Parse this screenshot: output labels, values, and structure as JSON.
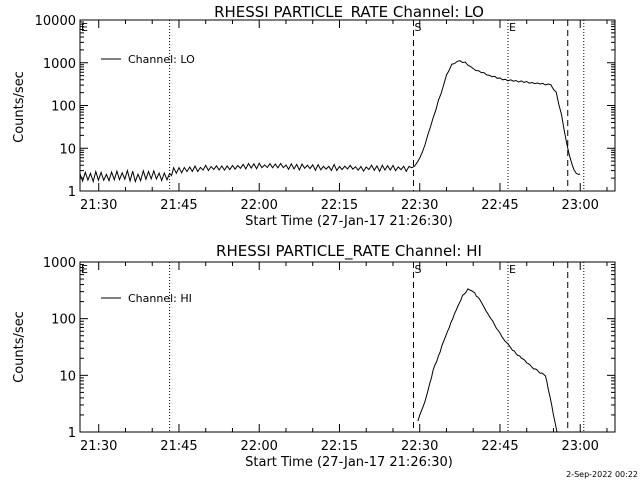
{
  "footer": {
    "date": "2-Sep-2022 00:22"
  },
  "chart_data": [
    {
      "type": "line",
      "title": "RHESSI PARTICLE_RATE Channel: LO",
      "xlabel": "Start Time (27-Jan-17 21:26:30)",
      "ylabel": "Counts/sec",
      "y_scale": "log",
      "ylim": [
        1,
        10000
      ],
      "xlim": [
        "21:26:30",
        "23:06:30"
      ],
      "x_ticks": [
        "21:30",
        "21:45",
        "22:00",
        "22:15",
        "22:30",
        "22:45",
        "23:00"
      ],
      "y_ticks": [
        "1",
        "10",
        "100",
        "1000",
        "10000"
      ],
      "legend": {
        "position": "top-left",
        "entries": [
          "Channel: LO"
        ]
      },
      "markers": [
        {
          "label": "E",
          "time": "21:26:30",
          "style": "dotted"
        },
        {
          "label": "",
          "time": "21:43:15",
          "style": "dotted"
        },
        {
          "label": "S",
          "time": "22:28:50",
          "style": "dashed"
        },
        {
          "label": "E",
          "time": "22:46:30",
          "style": "dotted"
        },
        {
          "label": "",
          "time": "22:57:40",
          "style": "dashed"
        },
        {
          "label": "",
          "time": "23:00:40",
          "style": "dotted"
        }
      ],
      "series": [
        {
          "name": "Channel: LO",
          "x": [
            "21:26:30",
            "21:43:15",
            "21:44:00",
            "21:50:00",
            "21:55:00",
            "22:00:00",
            "22:05:00",
            "22:10:00",
            "22:15:00",
            "22:20:00",
            "22:25:00",
            "22:28:30",
            "22:29:30",
            "22:30:30",
            "22:31:30",
            "22:32:30",
            "22:33:30",
            "22:34:30",
            "22:35:00",
            "22:36:00",
            "22:37:00",
            "22:37:30",
            "22:38:30",
            "22:40:00",
            "22:43:00",
            "22:46:00",
            "22:50:00",
            "22:53:00",
            "22:54:30",
            "22:55:30",
            "22:56:30",
            "22:57:30",
            "22:58:30",
            "22:59:15",
            "23:00:00"
          ],
          "values": [
            2.2,
            2.2,
            3.0,
            3.4,
            3.6,
            3.8,
            3.8,
            3.6,
            3.5,
            3.4,
            3.4,
            3.4,
            4.5,
            8.0,
            20,
            50,
            130,
            300,
            500,
            900,
            1050,
            1100,
            1000,
            720,
            500,
            400,
            350,
            320,
            300,
            200,
            60,
            12,
            4.0,
            2.5,
            2.5
          ],
          "noise_amplitude_note": "jagged"
        }
      ]
    },
    {
      "type": "line",
      "title": "RHESSI PARTICLE_RATE Channel: HI",
      "xlabel": "Start Time (27-Jan-17 21:26:30)",
      "ylabel": "Counts/sec",
      "y_scale": "log",
      "ylim": [
        1,
        1000
      ],
      "xlim": [
        "21:26:30",
        "23:06:30"
      ],
      "x_ticks": [
        "21:30",
        "21:45",
        "22:00",
        "22:15",
        "22:30",
        "22:45",
        "23:00"
      ],
      "y_ticks": [
        "1",
        "10",
        "100",
        "1000"
      ],
      "legend": {
        "position": "top-left",
        "entries": [
          "Channel: HI"
        ]
      },
      "markers": [
        {
          "label": "E",
          "time": "21:26:30",
          "style": "dotted"
        },
        {
          "label": "",
          "time": "21:43:15",
          "style": "dotted"
        },
        {
          "label": "S",
          "time": "22:28:50",
          "style": "dashed"
        },
        {
          "label": "E",
          "time": "22:46:30",
          "style": "dotted"
        },
        {
          "label": "",
          "time": "22:57:40",
          "style": "dashed"
        },
        {
          "label": "",
          "time": "23:00:40",
          "style": "dotted"
        }
      ],
      "series": [
        {
          "name": "Channel: HI",
          "x": [
            "22:29:40",
            "22:31:00",
            "22:32:30",
            "22:34:30",
            "22:36:30",
            "22:38:00",
            "22:39:00",
            "22:40:00",
            "22:41:30",
            "22:43:00",
            "22:45:00",
            "22:47:00",
            "22:49:00",
            "22:51:00",
            "22:52:30",
            "22:53:30",
            "22:54:00",
            "22:54:40",
            "22:55:15",
            "22:55:40"
          ],
          "values": [
            1.6,
            3.5,
            12,
            40,
            120,
            250,
            330,
            300,
            200,
            110,
            55,
            30,
            20,
            14,
            11,
            10,
            6,
            3,
            1.5,
            1.0
          ]
        }
      ]
    }
  ]
}
